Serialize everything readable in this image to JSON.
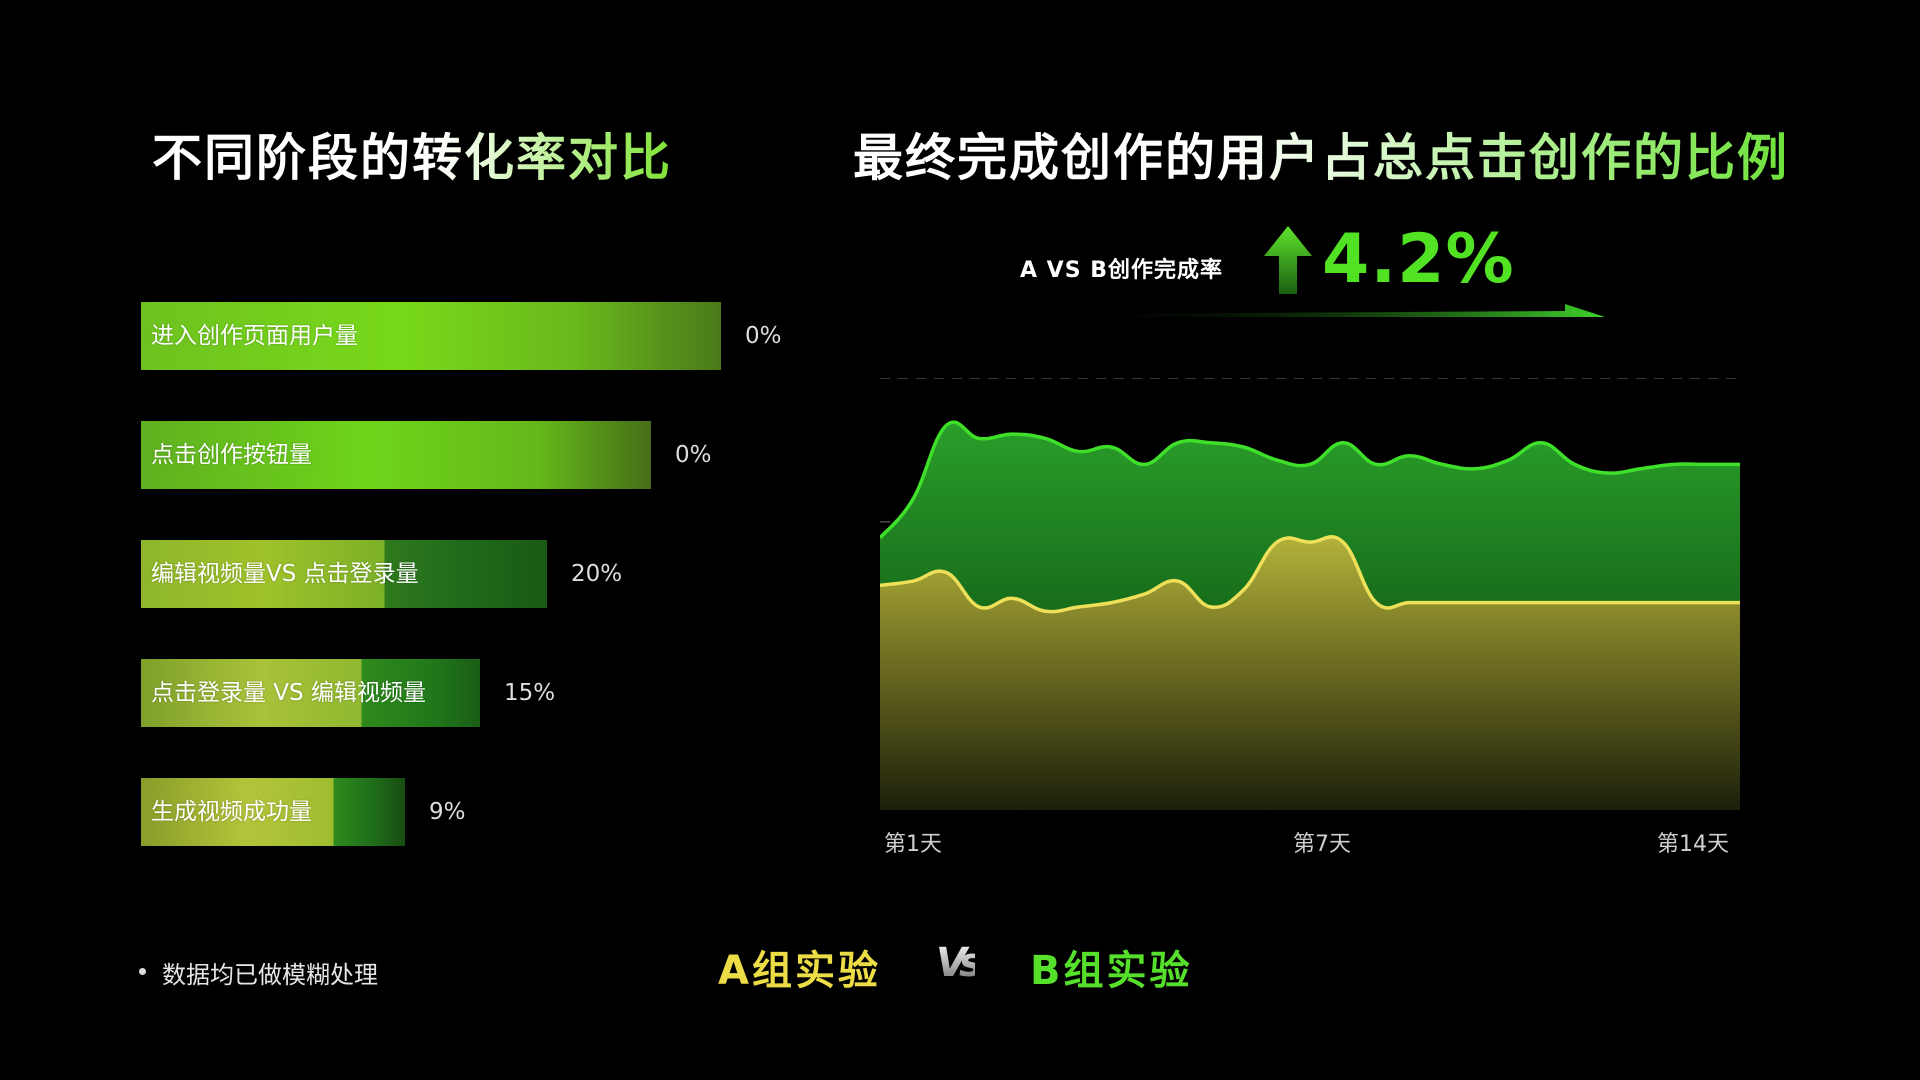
{
  "titles": {
    "left": "不同阶段的转化率对比",
    "right": "最终完成创作的用户占总点击创作的比例"
  },
  "headline": {
    "label": "A VS B创作完成率",
    "value": "4.2%",
    "direction": "up",
    "accent_color": "#52e224"
  },
  "chart_data": [
    {
      "type": "bar",
      "orientation": "horizontal",
      "categories": [
        "进入创作页面用户量",
        "点击创作按钮量",
        "编辑视频量VS 点击登录量",
        "点击登录量 VS 编辑视频量",
        "生成视频成功量"
      ],
      "value_labels": [
        "0%",
        "0%",
        "20%",
        "15%",
        "9%"
      ],
      "relative_lengths": [
        1.0,
        0.88,
        0.7,
        0.585,
        0.455
      ],
      "colors": [
        "#7ed321",
        "#1f8a1f",
        "#c8d43a"
      ]
    },
    {
      "type": "area",
      "x_tick_labels": [
        "第1天",
        "第7天",
        "第14天"
      ],
      "x": [
        1,
        1.5,
        2,
        2.5,
        3,
        3.5,
        4,
        4.5,
        5,
        5.5,
        6,
        6.5,
        7,
        7.5,
        8,
        8.5,
        9,
        9.5,
        10,
        10.5,
        11,
        11.5,
        12,
        12.5,
        13,
        13.5,
        14
      ],
      "series": [
        {
          "name": "B组实验",
          "color": "#3fe02a",
          "values": [
            63,
            72,
            89,
            86,
            87,
            86,
            83,
            84,
            80,
            85,
            85,
            84,
            81,
            80,
            85,
            80,
            82,
            80,
            79,
            81,
            85,
            80,
            78,
            79,
            80,
            80,
            80
          ]
        },
        {
          "name": "A组实验",
          "color": "#efe05a",
          "values": [
            52,
            53,
            55,
            47,
            49,
            46,
            47,
            48,
            50,
            53,
            47,
            51,
            62,
            62,
            62,
            48,
            48,
            48,
            48,
            48,
            48,
            48,
            48,
            48,
            48,
            48,
            48
          ]
        }
      ],
      "ylim": [
        0,
        100
      ],
      "grid": "dashed-horizontal"
    }
  ],
  "legend": {
    "group_a": "A组实验",
    "vs": "Vs",
    "group_b": "B组实验"
  },
  "note": "数据均已做模糊处理"
}
